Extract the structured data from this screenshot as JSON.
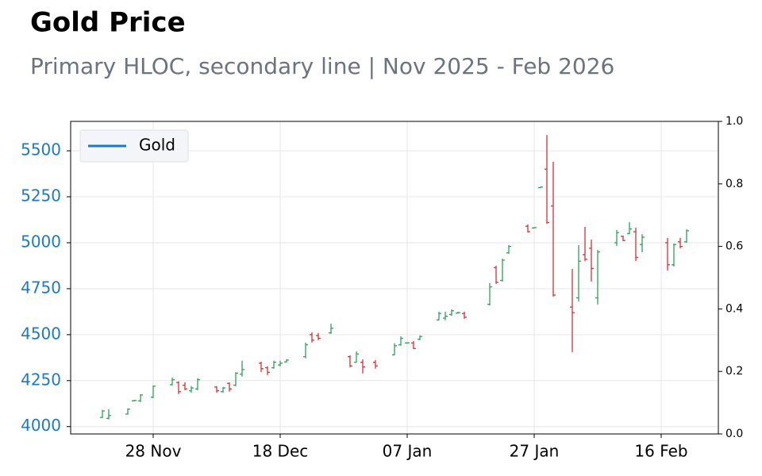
{
  "chart_data": {
    "type": "ohlc",
    "title": "Gold Price",
    "subtitle": "Primary HLOC, secondary line | Nov 2025 - Feb 2026",
    "ohlc": {
      "dates": [
        "2025-11-20",
        "2025-11-21",
        "2025-11-24",
        "2025-11-25",
        "2025-11-26",
        "2025-11-28",
        "2025-12-01",
        "2025-12-02",
        "2025-12-03",
        "2025-12-04",
        "2025-12-05",
        "2025-12-08",
        "2025-12-09",
        "2025-12-10",
        "2025-12-11",
        "2025-12-12",
        "2025-12-15",
        "2025-12-16",
        "2025-12-17",
        "2025-12-18",
        "2025-12-19",
        "2025-12-22",
        "2025-12-23",
        "2025-12-24",
        "2025-12-26",
        "2025-12-29",
        "2025-12-30",
        "2025-12-31",
        "2026-01-02",
        "2026-01-05",
        "2026-01-06",
        "2026-01-07",
        "2026-01-08",
        "2026-01-09",
        "2026-01-12",
        "2026-01-13",
        "2026-01-14",
        "2026-01-15",
        "2026-01-16",
        "2026-01-20",
        "2026-01-21",
        "2026-01-22",
        "2026-01-23",
        "2026-01-26",
        "2026-01-27",
        "2026-01-28",
        "2026-01-29",
        "2026-01-30",
        "2026-02-02",
        "2026-02-03",
        "2026-02-04",
        "2026-02-05",
        "2026-02-06",
        "2026-02-09",
        "2026-02-10",
        "2026-02-11",
        "2026-02-12",
        "2026-02-13",
        "2026-02-17",
        "2026-02-18",
        "2026-02-19",
        "2026-02-20"
      ],
      "open": [
        4050,
        4045,
        4068,
        4140,
        4140,
        4160,
        4228,
        4240,
        4225,
        4195,
        4205,
        4215,
        4190,
        4235,
        4225,
        4285,
        4345,
        4320,
        4320,
        4335,
        4352,
        4380,
        4500,
        4495,
        4510,
        4380,
        4350,
        4350,
        4350,
        4390,
        4445,
        4455,
        4455,
        4475,
        4580,
        4590,
        4610,
        4617,
        4615,
        4665,
        4865,
        4795,
        4945,
        5090,
        5080,
        5300,
        5400,
        5200,
        4650,
        4700,
        4935,
        4970,
        4700,
        5000,
        5035,
        5050,
        5060,
        4990,
        5000,
        4880,
        5005,
        5005
      ],
      "high": [
        4091,
        4095,
        4099,
        4145,
        4177,
        4224,
        4267,
        4246,
        4241,
        4220,
        4263,
        4220,
        4216,
        4241,
        4297,
        4358,
        4353,
        4328,
        4358,
        4358,
        4366,
        4457,
        4513,
        4509,
        4560,
        4388,
        4409,
        4366,
        4362,
        4453,
        4491,
        4458,
        4465,
        4496,
        4625,
        4625,
        4638,
        4625,
        4625,
        4780,
        4875,
        4914,
        4987,
        5099,
        5085,
        5305,
        5586,
        5440,
        4858,
        4987,
        5086,
        5017,
        4961,
        5069,
        5039,
        5112,
        5082,
        5047,
        5026,
        4996,
        5026,
        5073
      ],
      "low": [
        4047,
        4039,
        4065,
        4138,
        4134,
        4155,
        4224,
        4177,
        4198,
        4185,
        4198,
        4185,
        4185,
        4190,
        4220,
        4272,
        4297,
        4280,
        4315,
        4328,
        4349,
        4371,
        4457,
        4470,
        4504,
        4323,
        4349,
        4289,
        4315,
        4388,
        4440,
        4452,
        4422,
        4470,
        4578,
        4578,
        4603,
        4616,
        4586,
        4659,
        4776,
        4789,
        4940,
        5056,
        5078,
        5298,
        5103,
        4707,
        4405,
        4681,
        4901,
        4789,
        4664,
        4983,
        5009,
        5047,
        4901,
        4948,
        4849,
        4871,
        4970,
        5000
      ],
      "close": [
        4085,
        4060,
        4095,
        4142,
        4172,
        4220,
        4255,
        4190,
        4205,
        4210,
        4255,
        4195,
        4210,
        4205,
        4290,
        4310,
        4315,
        4295,
        4350,
        4345,
        4362,
        4445,
        4470,
        4480,
        4535,
        4330,
        4395,
        4325,
        4330,
        4440,
        4480,
        4456,
        4425,
        4490,
        4615,
        4600,
        4630,
        4620,
        4595,
        4760,
        4785,
        4905,
        4980,
        5060,
        5082,
        5303,
        5110,
        4715,
        4620,
        4900,
        4910,
        4860,
        4950,
        5055,
        5012,
        5075,
        4920,
        5030,
        4880,
        4990,
        4980,
        5065
      ],
      "up_color": "#2ca05a",
      "down_color": "#d62f3a"
    },
    "series": [
      {
        "name": "Gold",
        "color": "#1a7ac4",
        "axis": "y2",
        "values": []
      }
    ],
    "xlim": [
      "2025-11-15",
      "2026-02-25"
    ],
    "xticks": [
      {
        "value": "2025-11-28",
        "label": "28 Nov"
      },
      {
        "value": "2025-12-18",
        "label": "18 Dec"
      },
      {
        "value": "2026-01-07",
        "label": "07 Jan"
      },
      {
        "value": "2026-01-27",
        "label": "27 Jan"
      },
      {
        "value": "2026-02-16",
        "label": "16 Feb"
      }
    ],
    "ylim": [
      3960,
      5660
    ],
    "yticks": [
      4000,
      4250,
      4500,
      4750,
      5000,
      5250,
      5500
    ],
    "y2lim": [
      0,
      1
    ],
    "y2ticks": [
      {
        "value": 0,
        "label": "0.0"
      },
      0.2,
      0.4,
      0.6,
      0.8,
      {
        "value": 1,
        "label": "1.0"
      }
    ],
    "y_axis_color": "#1a7ac4",
    "grid": true,
    "legend": "upper left"
  }
}
